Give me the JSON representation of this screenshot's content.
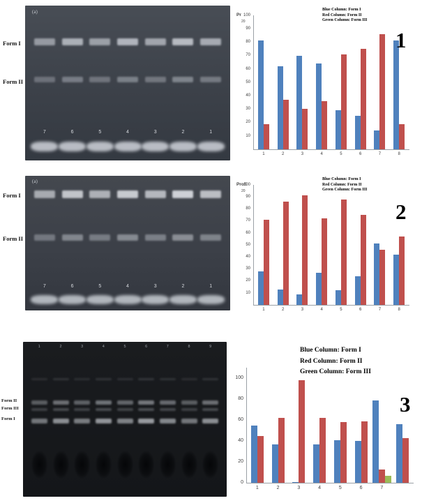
{
  "panels": [
    {
      "number": "1",
      "gel": {
        "corner_label": "(a)",
        "side_labels": [
          "Form I",
          "Form II"
        ],
        "lane_numbers": [
          "7",
          "6",
          "5",
          "4",
          "3",
          "2",
          "1"
        ]
      }
    },
    {
      "number": "2",
      "gel": {
        "corner_label": "(a)",
        "side_labels": [
          "Form I",
          "Form II"
        ],
        "lane_numbers": [
          "7",
          "6",
          "5",
          "4",
          "3",
          "2",
          "1"
        ]
      }
    },
    {
      "number": "3",
      "gel": {
        "corner_label": "",
        "side_labels": [
          "Form II",
          "Form III",
          "Form I"
        ],
        "lane_numbers": [
          "1",
          "2",
          "3",
          "4",
          "5",
          "6",
          "7",
          "8",
          "9"
        ]
      }
    }
  ],
  "chart_data": [
    {
      "type": "bar",
      "axis_label": "Pr",
      "axis_sublabel": "20",
      "y_ticks": [
        100,
        90,
        80,
        70,
        60,
        50,
        40,
        30,
        20,
        10
      ],
      "ylim": [
        0,
        100
      ],
      "categories": [
        "1",
        "2",
        "3",
        "4",
        "5",
        "6",
        "7",
        "8"
      ],
      "series": [
        {
          "name": "Form I",
          "color": "#4F81BD",
          "values": [
            81,
            62,
            70,
            64,
            29,
            25,
            14,
            81
          ]
        },
        {
          "name": "Form II",
          "color": "#C0504D",
          "values": [
            19,
            37,
            30,
            36,
            71,
            75,
            86,
            19
          ]
        }
      ],
      "legend": [
        "Blue Column: Form I",
        "Red Column: Form II",
        "Green Column: Form III"
      ],
      "legend_position": "top-right"
    },
    {
      "type": "bar",
      "axis_label": "Profi",
      "axis_sublabel": "20",
      "y_ticks": [
        100,
        90,
        80,
        70,
        60,
        50,
        40,
        30,
        20,
        10
      ],
      "ylim": [
        0,
        100
      ],
      "categories": [
        "1",
        "2",
        "3",
        "4",
        "5",
        "6",
        "7",
        "8"
      ],
      "series": [
        {
          "name": "Form I",
          "color": "#4F81BD",
          "values": [
            28,
            13,
            9,
            27,
            12,
            24,
            51,
            42
          ]
        },
        {
          "name": "Form II",
          "color": "#C0504D",
          "values": [
            71,
            86,
            91,
            72,
            88,
            75,
            46,
            57
          ]
        }
      ],
      "legend": [
        "Blue Column: Form I",
        "Red Column: Form II",
        "Green Column: Form III"
      ],
      "legend_position": "top-right"
    },
    {
      "type": "bar",
      "axis_label": "",
      "axis_sublabel": "",
      "y_ticks": [
        100,
        80,
        60,
        40,
        20,
        0
      ],
      "ylim": [
        0,
        110
      ],
      "categories": [
        "1",
        "2",
        "3",
        "4",
        "5",
        "6",
        "7",
        ""
      ],
      "series": [
        {
          "name": "Form I",
          "color": "#4F81BD",
          "values": [
            55,
            37,
            1,
            37,
            41,
            40,
            79,
            56
          ]
        },
        {
          "name": "Form II",
          "color": "#C0504D",
          "values": [
            45,
            62,
            98,
            62,
            58,
            59,
            13,
            43
          ]
        },
        {
          "name": "Form III",
          "color": "#9BBB59",
          "values": [
            0,
            0,
            0,
            0,
            0,
            0,
            7,
            0
          ]
        }
      ],
      "legend": [
        "Blue Column: Form I",
        "Red Column: Form II",
        "Green Column: Form III"
      ],
      "legend_position": "top-center"
    }
  ]
}
